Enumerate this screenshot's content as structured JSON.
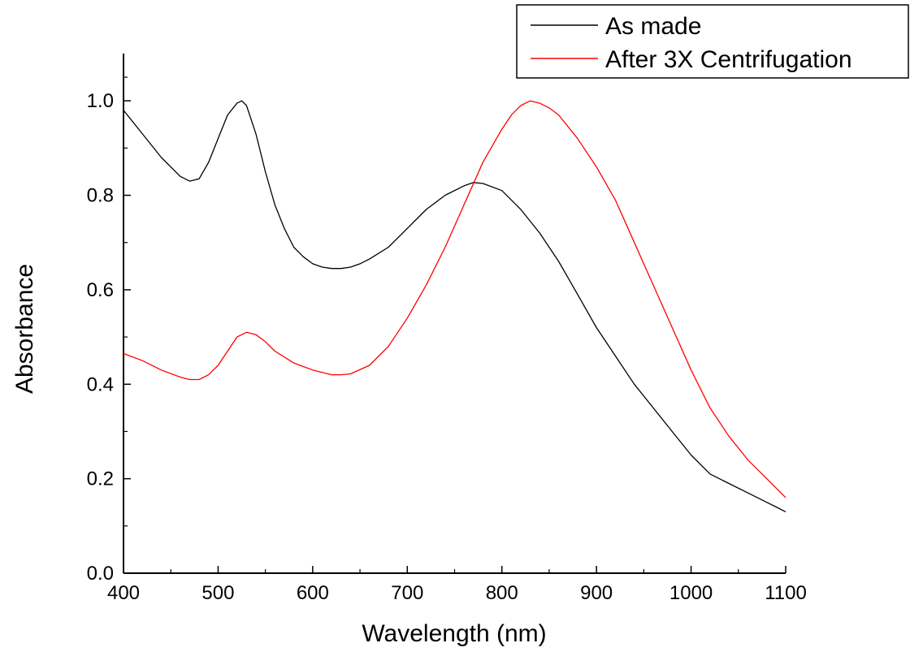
{
  "chart_data": {
    "type": "line",
    "title": "",
    "xlabel": "Wavelength (nm)",
    "ylabel": "Absorbance",
    "xlim": [
      400,
      1100
    ],
    "ylim": [
      0.0,
      1.1
    ],
    "xticks": [
      400,
      500,
      600,
      700,
      800,
      900,
      1000,
      1100
    ],
    "xtick_labels": [
      "400",
      "500",
      "600",
      "700",
      "800",
      "900",
      "1000",
      "1100"
    ],
    "yticks": [
      0.0,
      0.2,
      0.4,
      0.6,
      0.8,
      1.0
    ],
    "ytick_labels": [
      "0.0",
      "0.2",
      "0.4",
      "0.6",
      "0.8",
      "1.0"
    ],
    "grid": false,
    "legend": "top-right",
    "series": [
      {
        "name": "As made",
        "color": "#000000",
        "x": [
          400,
          420,
          440,
          460,
          470,
          480,
          490,
          500,
          510,
          520,
          525,
          530,
          540,
          550,
          560,
          570,
          580,
          590,
          600,
          610,
          620,
          630,
          640,
          650,
          660,
          680,
          700,
          720,
          740,
          760,
          770,
          780,
          800,
          820,
          840,
          860,
          880,
          900,
          920,
          940,
          960,
          980,
          1000,
          1020,
          1040,
          1060,
          1080,
          1090,
          1100
        ],
        "y": [
          0.98,
          0.93,
          0.88,
          0.84,
          0.83,
          0.835,
          0.87,
          0.92,
          0.97,
          0.995,
          1.0,
          0.99,
          0.93,
          0.85,
          0.78,
          0.73,
          0.69,
          0.67,
          0.655,
          0.648,
          0.645,
          0.645,
          0.648,
          0.655,
          0.665,
          0.69,
          0.73,
          0.77,
          0.8,
          0.82,
          0.827,
          0.825,
          0.81,
          0.77,
          0.72,
          0.66,
          0.59,
          0.52,
          0.46,
          0.4,
          0.35,
          0.3,
          0.25,
          0.21,
          0.19,
          0.17,
          0.15,
          0.14,
          0.13
        ]
      },
      {
        "name": "After 3X Centrifugation",
        "color": "#ff0000",
        "x": [
          400,
          420,
          440,
          460,
          470,
          480,
          490,
          500,
          510,
          520,
          530,
          540,
          550,
          560,
          580,
          600,
          620,
          630,
          640,
          660,
          680,
          700,
          720,
          740,
          760,
          780,
          800,
          810,
          820,
          830,
          840,
          850,
          860,
          880,
          900,
          920,
          940,
          960,
          980,
          1000,
          1020,
          1040,
          1060,
          1080,
          1100
        ],
        "y": [
          0.465,
          0.45,
          0.43,
          0.415,
          0.41,
          0.41,
          0.42,
          0.44,
          0.47,
          0.5,
          0.51,
          0.505,
          0.49,
          0.47,
          0.445,
          0.43,
          0.42,
          0.42,
          0.422,
          0.44,
          0.48,
          0.54,
          0.61,
          0.69,
          0.78,
          0.87,
          0.94,
          0.97,
          0.99,
          1.0,
          0.995,
          0.985,
          0.97,
          0.92,
          0.86,
          0.79,
          0.7,
          0.61,
          0.52,
          0.43,
          0.35,
          0.29,
          0.24,
          0.2,
          0.16
        ]
      }
    ]
  }
}
